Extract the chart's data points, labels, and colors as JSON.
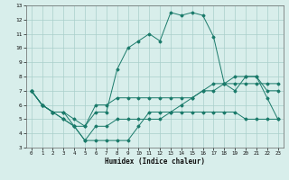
{
  "xlabel": "Humidex (Indice chaleur)",
  "x": [
    0,
    1,
    2,
    3,
    4,
    5,
    6,
    7,
    8,
    9,
    10,
    11,
    12,
    13,
    14,
    15,
    16,
    17,
    18,
    19,
    20,
    21,
    22,
    23
  ],
  "line1": [
    7.0,
    6.0,
    5.5,
    5.5,
    5.0,
    4.5,
    6.0,
    6.0,
    6.5,
    6.5,
    6.5,
    6.5,
    6.5,
    6.5,
    6.5,
    6.5,
    7.0,
    7.5,
    7.5,
    7.5,
    7.5,
    7.5,
    7.5,
    7.5
  ],
  "line2": [
    7.0,
    6.0,
    5.5,
    5.0,
    4.5,
    3.5,
    3.5,
    3.5,
    3.5,
    3.5,
    4.5,
    5.5,
    5.5,
    5.5,
    5.5,
    5.5,
    5.5,
    5.5,
    5.5,
    5.5,
    5.0,
    5.0,
    5.0,
    5.0
  ],
  "line3": [
    7.0,
    6.0,
    5.5,
    5.5,
    4.5,
    4.5,
    5.5,
    5.5,
    8.5,
    10.0,
    10.5,
    11.0,
    10.5,
    12.5,
    12.3,
    12.5,
    12.3,
    10.8,
    7.5,
    7.0,
    8.0,
    8.0,
    6.5,
    5.0
  ],
  "line4": [
    7.0,
    6.0,
    5.5,
    5.0,
    4.5,
    3.5,
    4.5,
    4.5,
    5.0,
    5.0,
    5.0,
    5.0,
    5.0,
    5.5,
    6.0,
    6.5,
    7.0,
    7.0,
    7.5,
    8.0,
    8.0,
    8.0,
    7.0,
    7.0
  ],
  "color": "#1a7a6a",
  "bg_color": "#d8eeeb",
  "grid_color": "#aacfca",
  "ylim": [
    3,
    13
  ],
  "xlim": [
    -0.5,
    23.5
  ],
  "yticks": [
    3,
    4,
    5,
    6,
    7,
    8,
    9,
    10,
    11,
    12,
    13
  ],
  "xticks": [
    0,
    1,
    2,
    3,
    4,
    5,
    6,
    7,
    8,
    9,
    10,
    11,
    12,
    13,
    14,
    15,
    16,
    17,
    18,
    19,
    20,
    21,
    22,
    23
  ]
}
